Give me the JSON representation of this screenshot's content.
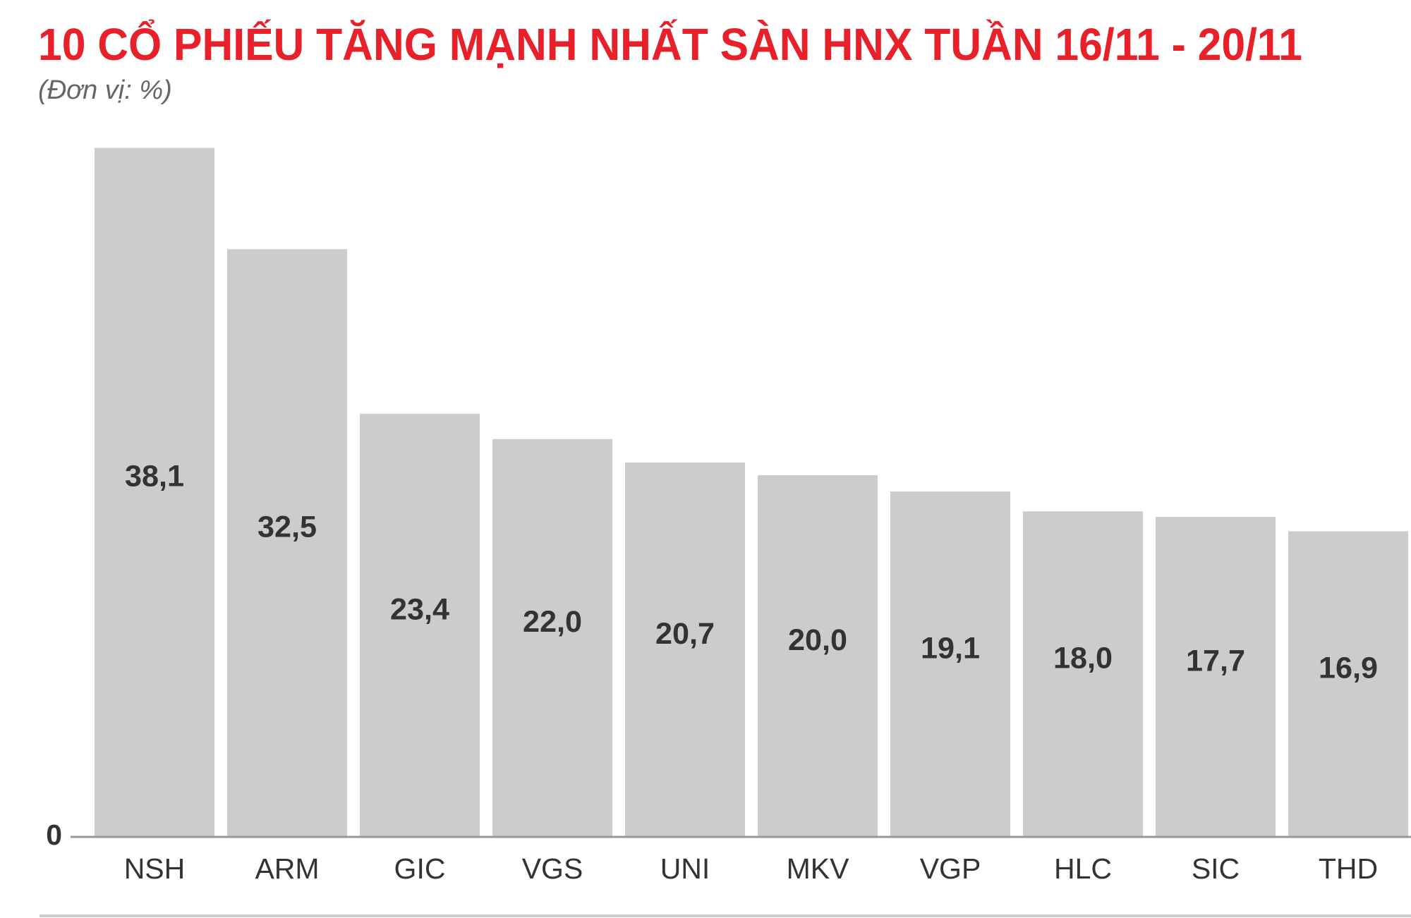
{
  "chart_data": {
    "type": "bar",
    "title": "10 CỔ PHIẾU TĂNG MẠNH NHẤT SÀN HNX TUẦN 16/11 - 20/11",
    "subtitle": "(Đơn vị: %)",
    "categories": [
      "NSH",
      "ARM",
      "GIC",
      "VGS",
      "UNI",
      "MKV",
      "VGP",
      "HLC",
      "SIC",
      "THD"
    ],
    "values": [
      38.1,
      32.5,
      23.4,
      22.0,
      20.7,
      20.0,
      19.1,
      18.0,
      17.7,
      16.9
    ],
    "value_labels": [
      "38,1",
      "32,5",
      "23,4",
      "22,0",
      "20,7",
      "20,0",
      "19,1",
      "18,0",
      "17,7",
      "16,9"
    ],
    "color": "#cccccc",
    "ylim": [
      0,
      40
    ],
    "yticks": [
      0
    ],
    "grid": false
  }
}
